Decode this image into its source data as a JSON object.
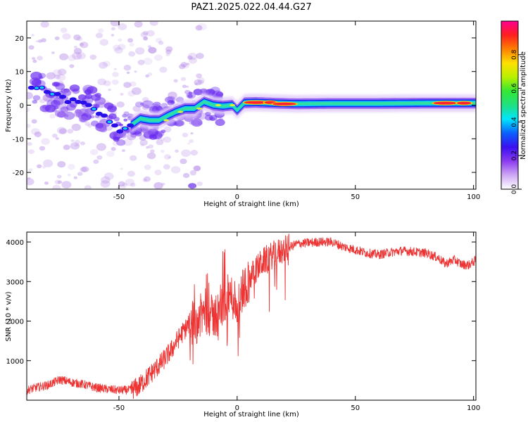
{
  "title": "PAZ1.2025.022.04.44.G27",
  "chart_data": [
    {
      "type": "heatmap",
      "xlabel": "Height of straight line (km)",
      "ylabel": "Frequency (Hz)",
      "xlim": [
        -89,
        101
      ],
      "ylim": [
        -25,
        25
      ],
      "xticks": [
        -50,
        0,
        50,
        100
      ],
      "yticks": [
        -20,
        -10,
        0,
        10,
        20
      ],
      "colorbar": {
        "label": "Normalized spectral amplitude",
        "range": [
          0,
          1
        ],
        "ticks": [
          0.0,
          0.2,
          0.4,
          0.6,
          0.8
        ],
        "tick_labels": [
          "0.0",
          "0.2",
          "0.4",
          "0.6",
          "0.8"
        ],
        "colors": [
          "#ffffff",
          "#cfa8f5",
          "#8c3cf0",
          "#3a10f0",
          "#0a60ff",
          "#00e5ff",
          "#20e080",
          "#34e834",
          "#b8f000",
          "#ffe000",
          "#ff8000",
          "#ff2020",
          "#ff0090"
        ]
      },
      "ridge_frequency": {
        "x": [
          -86,
          -80,
          -74,
          -68,
          -62,
          -56,
          -50,
          -45,
          -41,
          -37,
          -33,
          -29,
          -26,
          -22,
          -18,
          -14,
          -10,
          -6,
          -2,
          0,
          3,
          8,
          15,
          25,
          40,
          60,
          80,
          95,
          101
        ],
        "freq": [
          6,
          3,
          2,
          1,
          0,
          -3,
          -7,
          -6,
          -4,
          -4.5,
          -4.5,
          -3,
          -2,
          -1,
          -1,
          1,
          0,
          -0.3,
          0,
          -1.5,
          0.7,
          0.8,
          0.6,
          0.4,
          0.5,
          0.5,
          0.6,
          0.6,
          0.6
        ]
      },
      "grid": false
    },
    {
      "type": "line",
      "xlabel": "Height of straight line (km)",
      "ylabel": "SNR (10 * v/v)",
      "xlim": [
        -89,
        101
      ],
      "ylim": [
        0,
        4250
      ],
      "xticks": [
        -50,
        0,
        50,
        100
      ],
      "yticks": [
        1000,
        2000,
        3000,
        4000
      ],
      "series": [
        {
          "color": "#ee3333",
          "x": [
            -89,
            -85,
            -80,
            -75,
            -70,
            -65,
            -60,
            -55,
            -50,
            -45,
            -42,
            -40,
            -36,
            -32,
            -28,
            -25,
            -22,
            -20,
            -17,
            -15,
            -13,
            -11,
            -9,
            -7,
            -5,
            -3,
            -1,
            0,
            2,
            4,
            6,
            8,
            10,
            13,
            16,
            20,
            25,
            30,
            35,
            40,
            45,
            50,
            55,
            60,
            65,
            70,
            75,
            80,
            85,
            88,
            92,
            95,
            98,
            100,
            101
          ],
          "y": [
            250,
            320,
            380,
            520,
            450,
            400,
            320,
            280,
            250,
            260,
            330,
            450,
            700,
            950,
            1250,
            1550,
            1800,
            1950,
            2000,
            2150,
            2300,
            2100,
            2150,
            2250,
            2550,
            2650,
            2550,
            2350,
            2750,
            2950,
            3150,
            3300,
            3450,
            3600,
            3700,
            3800,
            3950,
            3980,
            4000,
            4000,
            3880,
            3800,
            3720,
            3680,
            3740,
            3780,
            3750,
            3720,
            3600,
            3450,
            3550,
            3430,
            3420,
            3500,
            3550
          ]
        }
      ],
      "grid": false
    }
  ]
}
